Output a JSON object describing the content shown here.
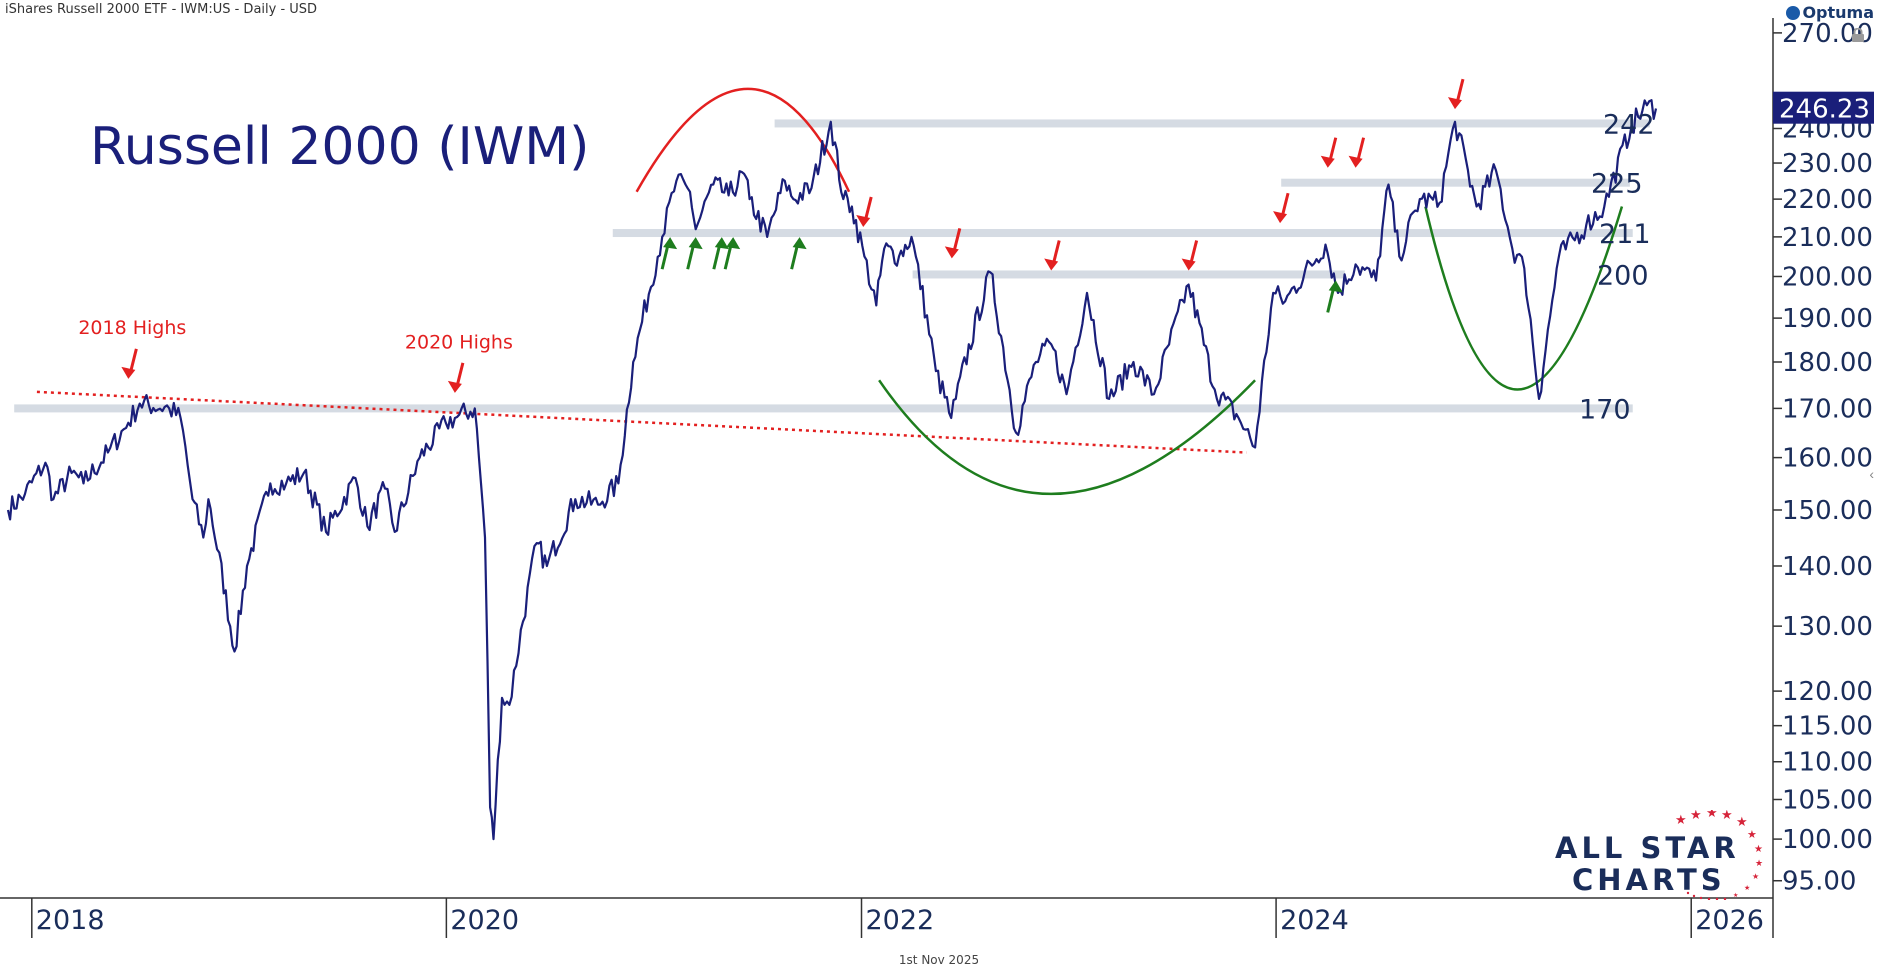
{
  "header": {
    "instrument": "iShares Russell 2000 ETF - IWM:US - Daily - USD",
    "brand": "Optuma",
    "footer_date": "1st Nov 2025",
    "title": "Russell 2000 (IWM)"
  },
  "logo": {
    "line1": "ALL STAR",
    "line2": "CHARTS"
  },
  "colors": {
    "price_line": "#1a1f7a",
    "last_price_box": "#1a1f7a",
    "support_band": "#d5dbe3",
    "trendline": "#e32020",
    "arrow_red": "#e32020",
    "arrow_green": "#1e7d1e",
    "arc_red": "#e32020",
    "arc_green": "#1e7d1e",
    "axis_text": "#1a2d5a"
  },
  "chart_data": {
    "type": "line",
    "title": "Russell 2000 (IWM)",
    "scale": "log",
    "ylim": [
      93,
      275
    ],
    "xlim": [
      "2017-11-20",
      "2026-05-01"
    ],
    "y_ticks": [
      "270.00",
      "240.00",
      "230.00",
      "220.00",
      "210.00",
      "200.00",
      "190.00",
      "180.00",
      "170.00",
      "160.00",
      "150.00",
      "140.00",
      "130.00",
      "120.00",
      "115.00",
      "110.00",
      "105.00",
      "100.00",
      "95.00"
    ],
    "x_ticks": [
      "2018",
      "2020",
      "2022",
      "2024",
      "2026"
    ],
    "last_price": "246.23",
    "series": [
      {
        "x": [
          "2017-11-20",
          "2017-12-20",
          "2018-01-25",
          "2018-02-08",
          "2018-03-12",
          "2018-04-02",
          "2018-05-15",
          "2018-06-20",
          "2018-07-10",
          "2018-08-31",
          "2018-09-20",
          "2018-10-11",
          "2018-10-30",
          "2018-11-08",
          "2018-12-24",
          "2019-01-15",
          "2019-02-25",
          "2019-03-25",
          "2019-04-25",
          "2019-06-03",
          "2019-07-25",
          "2019-08-15",
          "2019-09-15",
          "2019-10-02",
          "2019-11-15",
          "2019-12-31",
          "2020-01-16",
          "2020-02-20",
          "2020-03-02",
          "2020-03-09",
          "2020-03-18",
          "2020-03-24",
          "2020-04-08",
          "2020-04-21",
          "2020-06-08",
          "2020-06-26",
          "2020-08-15",
          "2020-09-24",
          "2020-10-30",
          "2020-11-25",
          "2021-01-15",
          "2021-02-09",
          "2021-03-05",
          "2021-03-15",
          "2021-04-15",
          "2021-05-12",
          "2021-06-08",
          "2021-06-18",
          "2021-07-19",
          "2021-08-19",
          "2021-09-03",
          "2021-10-05",
          "2021-11-08",
          "2021-11-30",
          "2021-12-15",
          "2022-01-06",
          "2022-01-27",
          "2022-02-10",
          "2022-03-08",
          "2022-03-30",
          "2022-05-12",
          "2022-06-08",
          "2022-06-16",
          "2022-08-16",
          "2022-09-30",
          "2022-11-04",
          "2022-12-01",
          "2022-12-28",
          "2023-02-02",
          "2023-03-13",
          "2023-04-25",
          "2023-05-31",
          "2023-07-31",
          "2023-09-15",
          "2023-10-27",
          "2023-11-25",
          "2023-12-27",
          "2024-01-17",
          "2024-03-28",
          "2024-04-19",
          "2024-05-20",
          "2024-06-25",
          "2024-07-17",
          "2024-08-05",
          "2024-09-10",
          "2024-10-15",
          "2024-11-11",
          "2024-12-19",
          "2025-01-22",
          "2025-02-20",
          "2025-03-13",
          "2025-04-08",
          "2025-05-13",
          "2025-06-30",
          "2025-08-01",
          "2025-09-18",
          "2025-10-15",
          "2025-10-31"
        ],
        "y": [
          150,
          153,
          159,
          152,
          157,
          155,
          161,
          167,
          171,
          170,
          168,
          152,
          145,
          152,
          126,
          140,
          155,
          155,
          157,
          146,
          156,
          147,
          154,
          146,
          160,
          167,
          168,
          170,
          155,
          145,
          104,
          100,
          119,
          118,
          144,
          140,
          152,
          151,
          155,
          180,
          210,
          225,
          222,
          212,
          224,
          221,
          227,
          220,
          210,
          225,
          220,
          223,
          242,
          220,
          218,
          205,
          193,
          207,
          205,
          210,
          178,
          168,
          172,
          201,
          165,
          180,
          184,
          173,
          196,
          172,
          180,
          173,
          198,
          174,
          168,
          162,
          196,
          194,
          208,
          196,
          203,
          199,
          224,
          205,
          220,
          219,
          242,
          218,
          228,
          207,
          202,
          172,
          205,
          213,
          218,
          241,
          247,
          246
        ]
      }
    ],
    "support_levels": [
      {
        "label": "242",
        "value": 241.5
      },
      {
        "label": "225",
        "value": 224.5
      },
      {
        "label": "211",
        "value": 211
      },
      {
        "label": "200",
        "value": 200.5
      },
      {
        "label": "170",
        "value": 170
      }
    ],
    "annotations": [
      {
        "text": "2018 Highs",
        "date": "2018-06-20",
        "value": 173
      },
      {
        "text": "2020 Highs",
        "date": "2020-01-16",
        "value": 170
      }
    ],
    "trendline": {
      "from": [
        "2018-01-10",
        173.5
      ],
      "to": [
        "2023-11-10",
        161
      ]
    },
    "red_arrows": [
      [
        "2018-06-20",
        175
      ],
      [
        "2020-01-16",
        172
      ],
      [
        "2022-01-04",
        211
      ],
      [
        "2022-06-09",
        203
      ],
      [
        "2022-12-01",
        200
      ],
      [
        "2023-07-31",
        200
      ],
      [
        "2024-01-08",
        212
      ],
      [
        "2024-04-01",
        227
      ],
      [
        "2024-05-20",
        227
      ],
      [
        "2024-11-11",
        244
      ]
    ],
    "green_arrows": [
      [
        "2021-01-29",
        212
      ],
      [
        "2021-03-15",
        212
      ],
      [
        "2021-04-30",
        212
      ],
      [
        "2021-05-20",
        212
      ],
      [
        "2021-09-14",
        212
      ],
      [
        "2024-04-15",
        201
      ]
    ],
    "arcs": [
      {
        "color": "red",
        "from": [
          "2020-12-01",
          222
        ],
        "peak": [
          "2021-06-15",
          252
        ],
        "to": [
          "2021-12-10",
          222
        ]
      },
      {
        "color": "green",
        "from": [
          "2022-02-01",
          176
        ],
        "bottom": [
          "2022-12-01",
          153
        ],
        "to": [
          "2023-11-25",
          176
        ]
      },
      {
        "color": "green",
        "from": [
          "2024-09-20",
          218
        ],
        "bottom": [
          "2025-03-01",
          174
        ],
        "to": [
          "2025-09-01",
          218
        ]
      }
    ]
  }
}
